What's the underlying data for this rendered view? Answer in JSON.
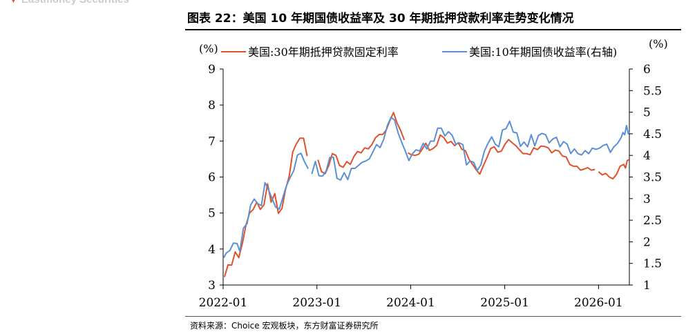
{
  "header": {
    "brand_text": "Eastmoney Securities",
    "title": "图表 22：美国 10 年期国债收益率及 30 年期抵押贷款利率走势变化情况"
  },
  "footer": {
    "source": "资料来源：Choice 宏观板块，东方财富证券研究所"
  },
  "colors": {
    "mortgage_series": "#e0502a",
    "treasury_series": "#5a8fd6",
    "axis": "#000000"
  },
  "chart_data": {
    "type": "line",
    "title": "",
    "left_axis": {
      "unit_label": "(%)",
      "ylim": [
        3,
        9
      ],
      "ticks": [
        3,
        4,
        5,
        6,
        7,
        8,
        9
      ]
    },
    "right_axis": {
      "unit_label": "(%)",
      "ylim": [
        1,
        6
      ],
      "ticks": [
        "1",
        "1.5",
        "2",
        "2.5",
        "3",
        "3.5",
        "4",
        "4.5",
        "5",
        "5.5",
        "6"
      ]
    },
    "x_tick_labels": [
      "2022-01",
      "2023-01",
      "2024-01",
      "2025-01",
      "2026-01"
    ],
    "x_tick_dates": [
      "2022-01-01",
      "2023-01-01",
      "2024-01-01",
      "2025-01-01",
      "2026-01-01"
    ],
    "x_range": [
      "2022-01-01",
      "2026-05-01"
    ],
    "grid": false,
    "legend_position": "top",
    "series": [
      {
        "name": "美国:30年期抵押贷款固定利率",
        "axis": "left",
        "color": "#e0502a",
        "points": [
          [
            "2022-01-06",
            3.22
          ],
          [
            "2022-01-20",
            3.56
          ],
          [
            "2022-02-03",
            3.55
          ],
          [
            "2022-02-17",
            3.92
          ],
          [
            "2022-03-03",
            3.76
          ],
          [
            "2022-03-17",
            4.16
          ],
          [
            "2022-03-31",
            4.67
          ],
          [
            "2022-04-14",
            5.0
          ],
          [
            "2022-04-28",
            5.1
          ],
          [
            "2022-05-12",
            5.3
          ],
          [
            "2022-05-26",
            5.1
          ],
          [
            "2022-06-09",
            5.23
          ],
          [
            "2022-06-23",
            5.81
          ],
          [
            "2022-07-07",
            5.3
          ],
          [
            "2022-07-21",
            5.54
          ],
          [
            "2022-08-04",
            4.99
          ],
          [
            "2022-08-18",
            5.13
          ],
          [
            "2022-09-01",
            5.66
          ],
          [
            "2022-09-15",
            6.02
          ],
          [
            "2022-09-29",
            6.7
          ],
          [
            "2022-10-13",
            6.92
          ],
          [
            "2022-10-27",
            7.08
          ],
          [
            "2022-11-10",
            7.08
          ],
          [
            "2022-11-24",
            6.58
          ]
        ],
        "points_2": [
          [
            "2023-01-05",
            6.48
          ],
          [
            "2023-01-19",
            6.15
          ],
          [
            "2023-02-02",
            6.09
          ],
          [
            "2023-02-16",
            6.32
          ],
          [
            "2023-03-02",
            6.65
          ],
          [
            "2023-03-16",
            6.6
          ],
          [
            "2023-03-30",
            6.32
          ],
          [
            "2023-04-13",
            6.27
          ],
          [
            "2023-04-27",
            6.43
          ],
          [
            "2023-05-11",
            6.35
          ],
          [
            "2023-05-25",
            6.57
          ],
          [
            "2023-06-08",
            6.71
          ],
          [
            "2023-06-22",
            6.67
          ],
          [
            "2023-07-06",
            6.81
          ],
          [
            "2023-07-20",
            6.78
          ],
          [
            "2023-08-03",
            6.9
          ],
          [
            "2023-08-17",
            7.09
          ],
          [
            "2023-08-31",
            7.18
          ],
          [
            "2023-09-14",
            7.18
          ],
          [
            "2023-09-28",
            7.31
          ],
          [
            "2023-10-12",
            7.57
          ],
          [
            "2023-10-26",
            7.79
          ],
          [
            "2023-11-09",
            7.5
          ],
          [
            "2023-11-23",
            7.29
          ],
          [
            "2023-12-07",
            7.03
          ]
        ],
        "points_3": [
          [
            "2023-12-21",
            6.67
          ],
          [
            "2024-01-04",
            6.62
          ],
          [
            "2024-01-18",
            6.6
          ],
          [
            "2024-02-01",
            6.63
          ],
          [
            "2024-02-15",
            6.77
          ],
          [
            "2024-02-29",
            6.94
          ],
          [
            "2024-03-14",
            6.74
          ],
          [
            "2024-03-28",
            6.79
          ],
          [
            "2024-04-11",
            6.88
          ],
          [
            "2024-04-25",
            7.17
          ],
          [
            "2024-05-09",
            7.09
          ],
          [
            "2024-05-23",
            6.94
          ],
          [
            "2024-06-06",
            6.99
          ],
          [
            "2024-06-20",
            6.87
          ],
          [
            "2024-07-04",
            6.95
          ],
          [
            "2024-07-18",
            6.77
          ],
          [
            "2024-08-01",
            6.73
          ],
          [
            "2024-08-15",
            6.49
          ],
          [
            "2024-08-29",
            6.35
          ],
          [
            "2024-09-12",
            6.2
          ],
          [
            "2024-09-26",
            6.08
          ],
          [
            "2024-10-10",
            6.32
          ],
          [
            "2024-10-24",
            6.54
          ],
          [
            "2024-11-07",
            6.79
          ],
          [
            "2024-11-21",
            6.84
          ],
          [
            "2024-12-05",
            6.69
          ],
          [
            "2024-12-19",
            6.72
          ],
          [
            "2025-01-02",
            6.91
          ],
          [
            "2025-01-16",
            7.04
          ],
          [
            "2025-01-30",
            6.95
          ],
          [
            "2025-02-13",
            6.87
          ],
          [
            "2025-02-27",
            6.76
          ],
          [
            "2025-03-13",
            6.65
          ],
          [
            "2025-03-27",
            6.65
          ],
          [
            "2025-04-10",
            6.62
          ],
          [
            "2025-04-24",
            6.81
          ],
          [
            "2025-05-08",
            6.76
          ],
          [
            "2025-05-22",
            6.86
          ],
          [
            "2025-06-05",
            6.85
          ],
          [
            "2025-06-19",
            6.81
          ],
          [
            "2025-07-03",
            6.67
          ],
          [
            "2025-07-17",
            6.75
          ],
          [
            "2025-07-31",
            6.72
          ],
          [
            "2025-08-14",
            6.58
          ],
          [
            "2025-08-28",
            6.56
          ],
          [
            "2025-09-11",
            6.35
          ],
          [
            "2025-09-25",
            6.3
          ],
          [
            "2025-10-09",
            6.3
          ],
          [
            "2025-10-23",
            6.19
          ],
          [
            "2025-11-06",
            6.22
          ],
          [
            "2025-11-20",
            6.26
          ],
          [
            "2025-12-04",
            6.19
          ],
          [
            "2025-12-18",
            6.21
          ]
        ],
        "points_4": [
          [
            "2026-01-01",
            6.15
          ],
          [
            "2026-01-15",
            6.06
          ],
          [
            "2026-01-29",
            6.1
          ],
          [
            "2026-02-12",
            6.0
          ],
          [
            "2026-02-26",
            5.95
          ],
          [
            "2026-03-12",
            6.07
          ],
          [
            "2026-03-26",
            6.3
          ],
          [
            "2026-04-09",
            6.35
          ],
          [
            "2026-04-16",
            6.25
          ],
          [
            "2026-04-23",
            6.46
          ],
          [
            "2026-04-30",
            6.48
          ]
        ]
      },
      {
        "name": "美国:10年期国债收益率(右轴)",
        "axis": "right",
        "color": "#5a8fd6",
        "points": [
          [
            "2022-01-03",
            1.63
          ],
          [
            "2022-01-13",
            1.74
          ],
          [
            "2022-01-27",
            1.8
          ],
          [
            "2022-02-10",
            1.97
          ],
          [
            "2022-02-24",
            1.96
          ],
          [
            "2022-03-07",
            1.78
          ],
          [
            "2022-03-21",
            2.32
          ],
          [
            "2022-04-04",
            2.42
          ],
          [
            "2022-04-18",
            2.85
          ],
          [
            "2022-05-02",
            2.99
          ],
          [
            "2022-05-16",
            2.88
          ],
          [
            "2022-05-30",
            2.84
          ],
          [
            "2022-06-13",
            3.37
          ],
          [
            "2022-06-27",
            3.2
          ],
          [
            "2022-07-11",
            2.99
          ],
          [
            "2022-07-25",
            2.8
          ],
          [
            "2022-08-08",
            2.76
          ],
          [
            "2022-08-22",
            3.04
          ],
          [
            "2022-09-05",
            3.31
          ],
          [
            "2022-09-19",
            3.49
          ],
          [
            "2022-10-03",
            3.65
          ],
          [
            "2022-10-17",
            4.01
          ],
          [
            "2022-10-31",
            4.05
          ],
          [
            "2022-11-14",
            3.85
          ],
          [
            "2022-11-28",
            3.69
          ]
        ],
        "points_2": [
          [
            "2022-12-12",
            3.57
          ],
          [
            "2022-12-26",
            3.86
          ],
          [
            "2023-01-09",
            3.53
          ],
          [
            "2023-01-23",
            3.52
          ],
          [
            "2023-02-06",
            3.64
          ],
          [
            "2023-02-20",
            3.95
          ],
          [
            "2023-03-06",
            3.96
          ],
          [
            "2023-03-20",
            3.47
          ],
          [
            "2023-04-03",
            3.43
          ],
          [
            "2023-04-17",
            3.6
          ],
          [
            "2023-05-01",
            3.44
          ],
          [
            "2023-05-15",
            3.7
          ],
          [
            "2023-05-29",
            3.7
          ],
          [
            "2023-06-12",
            3.77
          ],
          [
            "2023-06-26",
            3.84
          ],
          [
            "2023-07-10",
            3.87
          ],
          [
            "2023-07-24",
            3.92
          ],
          [
            "2023-08-07",
            4.08
          ],
          [
            "2023-08-21",
            4.25
          ],
          [
            "2023-09-04",
            4.18
          ],
          [
            "2023-09-18",
            4.37
          ],
          [
            "2023-10-02",
            4.69
          ],
          [
            "2023-10-16",
            4.88
          ],
          [
            "2023-10-30",
            4.82
          ],
          [
            "2023-11-13",
            4.52
          ],
          [
            "2023-11-27",
            4.3
          ],
          [
            "2023-12-11",
            4.1
          ],
          [
            "2023-12-25",
            3.88
          ],
          [
            "2024-01-08",
            4.04
          ],
          [
            "2024-01-22",
            4.13
          ],
          [
            "2024-02-05",
            4.1
          ],
          [
            "2024-02-19",
            4.28
          ],
          [
            "2024-03-04",
            4.15
          ],
          [
            "2024-03-18",
            4.33
          ],
          [
            "2024-04-01",
            4.33
          ],
          [
            "2024-04-15",
            4.63
          ],
          [
            "2024-04-29",
            4.63
          ],
          [
            "2024-05-13",
            4.45
          ],
          [
            "2024-05-27",
            4.55
          ],
          [
            "2024-06-10",
            4.47
          ],
          [
            "2024-06-24",
            4.26
          ],
          [
            "2024-07-08",
            4.29
          ],
          [
            "2024-07-22",
            4.25
          ],
          [
            "2024-08-05",
            3.78
          ],
          [
            "2024-08-19",
            3.87
          ],
          [
            "2024-09-02",
            3.84
          ],
          [
            "2024-09-16",
            3.65
          ],
          [
            "2024-09-30",
            3.78
          ],
          [
            "2024-10-14",
            4.1
          ],
          [
            "2024-10-28",
            4.28
          ],
          [
            "2024-11-11",
            4.43
          ],
          [
            "2024-11-25",
            4.26
          ],
          [
            "2024-12-09",
            4.2
          ],
          [
            "2024-12-23",
            4.59
          ],
          [
            "2025-01-06",
            4.62
          ],
          [
            "2025-01-20",
            4.79
          ],
          [
            "2025-02-03",
            4.54
          ],
          [
            "2025-02-17",
            4.52
          ],
          [
            "2025-03-03",
            4.21
          ],
          [
            "2025-03-17",
            4.31
          ],
          [
            "2025-03-31",
            4.2
          ],
          [
            "2025-04-14",
            4.48
          ],
          [
            "2025-04-28",
            4.22
          ],
          [
            "2025-05-12",
            4.46
          ],
          [
            "2025-05-26",
            4.51
          ],
          [
            "2025-06-09",
            4.48
          ],
          [
            "2025-06-23",
            4.29
          ],
          [
            "2025-07-07",
            4.38
          ],
          [
            "2025-07-21",
            4.42
          ],
          [
            "2025-08-04",
            4.2
          ],
          [
            "2025-08-18",
            4.32
          ],
          [
            "2025-09-01",
            4.26
          ],
          [
            "2025-09-15",
            4.04
          ],
          [
            "2025-09-29",
            4.15
          ],
          [
            "2025-10-13",
            4.04
          ],
          [
            "2025-10-27",
            4.01
          ],
          [
            "2025-11-10",
            4.11
          ],
          [
            "2025-11-24",
            4.04
          ],
          [
            "2025-12-08",
            4.17
          ],
          [
            "2025-12-22",
            4.14
          ],
          [
            "2026-01-05",
            4.17
          ],
          [
            "2026-01-19",
            4.23
          ],
          [
            "2026-02-02",
            4.26
          ],
          [
            "2026-02-16",
            4.07
          ],
          [
            "2026-03-02",
            4.2
          ],
          [
            "2026-03-16",
            4.28
          ],
          [
            "2026-03-30",
            4.41
          ],
          [
            "2026-04-06",
            4.53
          ],
          [
            "2026-04-13",
            4.48
          ],
          [
            "2026-04-20",
            4.69
          ],
          [
            "2026-04-27",
            4.5
          ],
          [
            "2026-05-01",
            4.55
          ]
        ]
      }
    ]
  }
}
